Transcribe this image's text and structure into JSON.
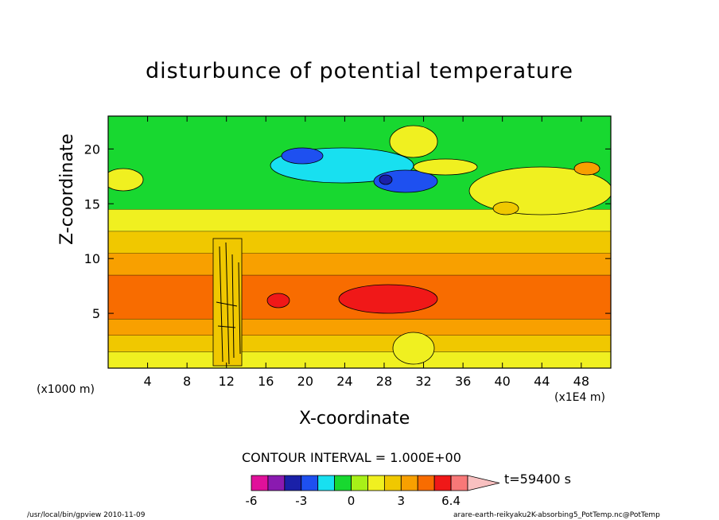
{
  "chart_data": {
    "type": "heatmap",
    "title": "disturbunce of potential temperature",
    "xlabel": "X-coordinate",
    "ylabel": "Z-coordinate",
    "x_unit": "(x1000 m)",
    "y_unit": "(x1E4 m)",
    "x_ticks": [
      "4",
      "8",
      "12",
      "16",
      "20",
      "24",
      "28",
      "32",
      "36",
      "40",
      "44",
      "48"
    ],
    "y_ticks": [
      "5",
      "10",
      "15",
      "20"
    ],
    "xlim": [
      0,
      51
    ],
    "ylim": [
      0,
      23
    ],
    "contour_interval": "CONTOUR INTERVAL = 1.000E+00",
    "time": "t=59400 s",
    "colorbar": {
      "labels": [
        "-6",
        "-3",
        "0",
        "3",
        "6.4"
      ],
      "colors": [
        "#e0109a",
        "#8a1ab0",
        "#1a20a8",
        "#1e50f0",
        "#18e0f0",
        "#18d830",
        "#a8f018",
        "#f0f020",
        "#f0c800",
        "#f8a000",
        "#f86c00",
        "#f01818",
        "#f87878",
        "#f8c0c0"
      ]
    },
    "bands": [
      {
        "z_from": 0,
        "z_to": 1.5,
        "color": "#f0f020"
      },
      {
        "z_from": 1.5,
        "z_to": 3,
        "color": "#f0c800"
      },
      {
        "z_from": 3,
        "z_to": 4.5,
        "color": "#f8a000"
      },
      {
        "z_from": 4.5,
        "z_to": 8.5,
        "color": "#f86c00"
      },
      {
        "z_from": 8.5,
        "z_to": 10.5,
        "color": "#f8a000"
      },
      {
        "z_from": 10.5,
        "z_to": 12.5,
        "color": "#f0c800"
      },
      {
        "z_from": 12.5,
        "z_to": 14.5,
        "color": "#f0f020"
      },
      {
        "z_from": 14.5,
        "z_to": 23,
        "color": "#18d830"
      }
    ]
  },
  "footer": {
    "left": "/usr/local/bin/gpview  2010-11-09",
    "right": "arare-earth-reikyaku2K-absorbing5_PotTemp.nc@PotTemp"
  }
}
